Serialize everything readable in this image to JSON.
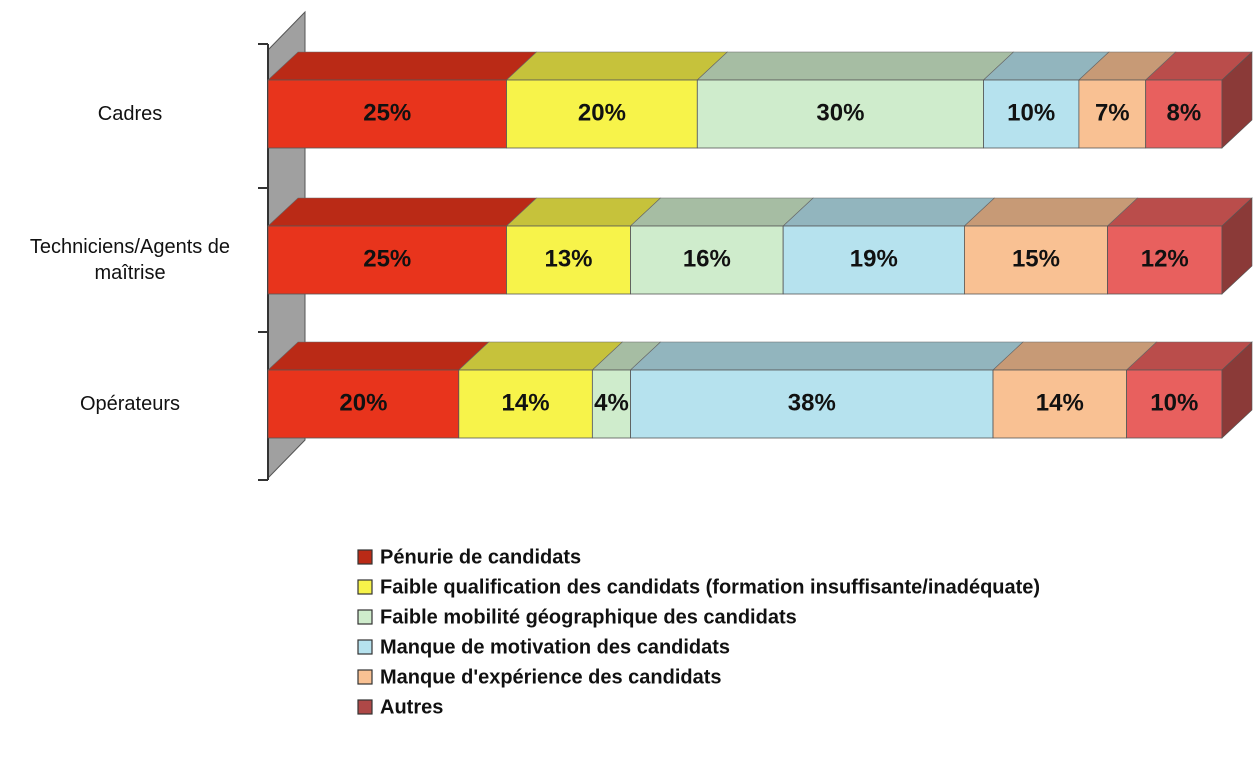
{
  "chart_data": {
    "type": "stacked_bar_3d",
    "orientation": "horizontal",
    "categories": [
      "Cadres",
      "Techniciens/Agents de maîtrise",
      "Opérateurs"
    ],
    "xlim": [
      0,
      100
    ],
    "series": [
      {
        "name": "Pénurie de candidats",
        "color": "#e8341c",
        "values": [
          25,
          25,
          20
        ],
        "value_labels": [
          "25%",
          "25%",
          "20%"
        ]
      },
      {
        "name": "Faible qualification des candidats (formation insuffisante/inadéquate)",
        "color": "#f7f34a",
        "values": [
          20,
          13,
          14
        ],
        "value_labels": [
          "20%",
          "13%",
          "14%"
        ]
      },
      {
        "name": "Faible mobilité géographique des candidats",
        "color": "#cfeccc",
        "values": [
          30,
          16,
          4
        ],
        "value_labels": [
          "30%",
          "16%",
          "4%"
        ]
      },
      {
        "name": "Manque de motivation des candidats",
        "color": "#b6e2ee",
        "values": [
          10,
          19,
          38
        ],
        "value_labels": [
          "10%",
          "19%",
          "38%"
        ]
      },
      {
        "name": "Manque d'expérience des candidats",
        "color": "#f9c193",
        "values": [
          7,
          15,
          14
        ],
        "value_labels": [
          "7%",
          "15%",
          "14%"
        ]
      },
      {
        "name": "Autres",
        "color": "#e8605e",
        "values": [
          8,
          12,
          10
        ],
        "value_labels": [
          "8%",
          "12%",
          "10%"
        ]
      }
    ]
  }
}
